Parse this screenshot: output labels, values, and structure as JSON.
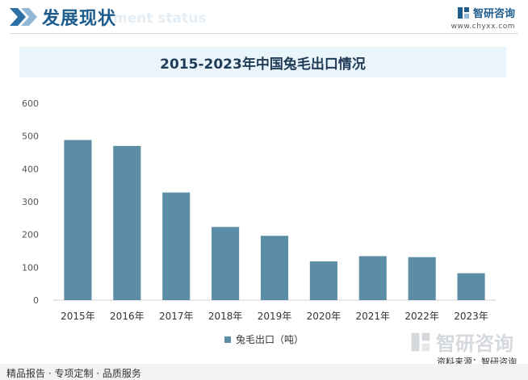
{
  "header": {
    "section_title": "发展现状",
    "ghost_text": "ment status",
    "brand_name": "智研咨询",
    "brand_url": "www.chyxx.com",
    "brand_icon": "zhiyan-logo-icon"
  },
  "chart_title": "2015-2023年中国兔毛出口情况",
  "chart_data": {
    "type": "bar",
    "title": "2015-2023年中国兔毛出口情况",
    "categories": [
      "2015年",
      "2016年",
      "2017年",
      "2018年",
      "2019年",
      "2020年",
      "2021年",
      "2022年",
      "2023年"
    ],
    "series": [
      {
        "name": "兔毛出口（吨）",
        "values": [
          488,
          470,
          328,
          223,
          196,
          118,
          134,
          131,
          82
        ]
      }
    ],
    "ylim": [
      0,
      600
    ],
    "yticks": [
      0,
      100,
      200,
      300,
      400,
      500,
      600
    ],
    "grid": false,
    "legend": "bottom",
    "bar_color": "#5b8ea6"
  },
  "legend": {
    "label": "兔毛出口（吨）"
  },
  "watermark": {
    "text": "智研咨询"
  },
  "source": "资料来源：智研咨询",
  "footer": {
    "text": "精品报告 · 专项定制 · 品质服务"
  }
}
